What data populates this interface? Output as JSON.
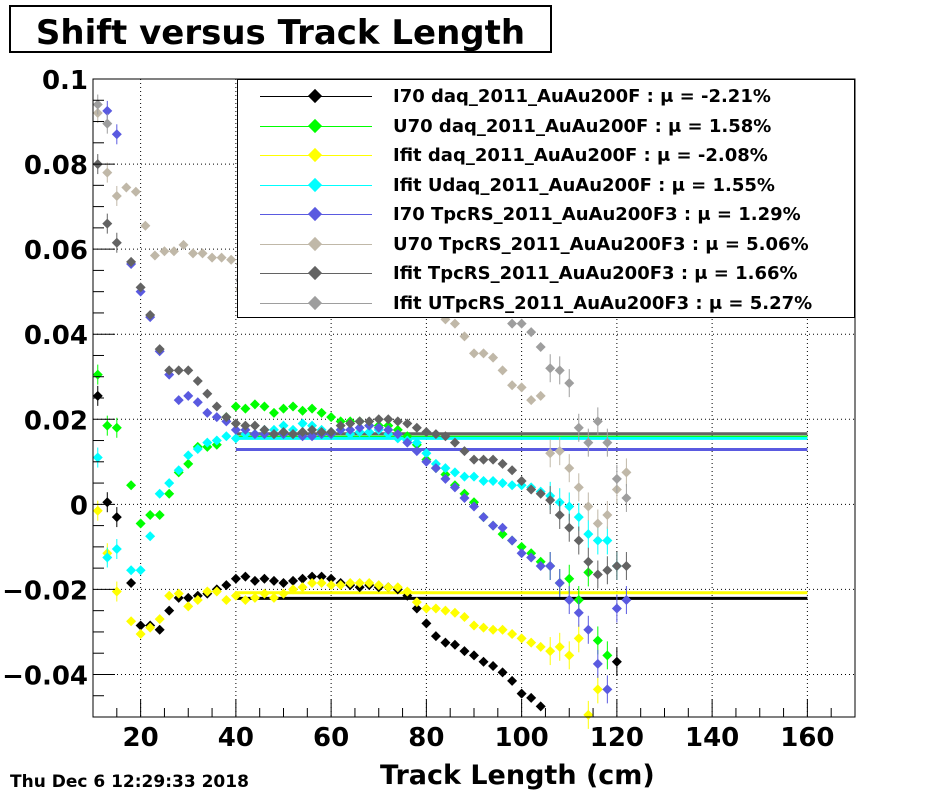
{
  "title": "Shift versus Track Length",
  "timestamp": "Thu Dec  6 12:29:33 2018",
  "chart_data": {
    "type": "scatter",
    "title": "Shift versus Track Length",
    "xlabel": "Track Length (cm)",
    "ylabel": "",
    "xlim": [
      10,
      170
    ],
    "ylim": [
      -0.05,
      0.1
    ],
    "x_ticks": [
      "20",
      "40",
      "60",
      "80",
      "100",
      "120",
      "140",
      "160"
    ],
    "y_ticks": [
      "0.1",
      "0.08",
      "0.06",
      "0.04",
      "0.02",
      "0",
      "−0.02",
      "−0.04"
    ],
    "grid": true,
    "legend_position": "top-right",
    "series": [
      {
        "name": "I70  daq_2011_AuAu200F : μ = -2.21%",
        "color": "#000000",
        "fit": -0.0221,
        "fit_range": [
          40,
          160
        ],
        "x": [
          11,
          13,
          15,
          18,
          20,
          22,
          24,
          26,
          28,
          30,
          32,
          34,
          36,
          38,
          40,
          42,
          44,
          46,
          48,
          50,
          52,
          54,
          56,
          58,
          60,
          62,
          64,
          66,
          68,
          70,
          72,
          74,
          76,
          78,
          80,
          82,
          84,
          86,
          88,
          90,
          92,
          94,
          96,
          98,
          100,
          102,
          104,
          120
        ],
        "y": [
          0.0255,
          0.0005,
          -0.003,
          -0.0185,
          -0.0285,
          -0.0285,
          -0.0295,
          -0.025,
          -0.022,
          -0.022,
          -0.0215,
          -0.021,
          -0.02,
          -0.019,
          -0.0175,
          -0.017,
          -0.018,
          -0.0175,
          -0.018,
          -0.0185,
          -0.018,
          -0.0175,
          -0.017,
          -0.017,
          -0.0175,
          -0.0185,
          -0.019,
          -0.0195,
          -0.019,
          -0.0195,
          -0.0195,
          -0.02,
          -0.0215,
          -0.0245,
          -0.028,
          -0.031,
          -0.0325,
          -0.033,
          -0.0345,
          -0.0355,
          -0.037,
          -0.038,
          -0.0395,
          -0.0415,
          -0.0445,
          -0.0455,
          -0.0475,
          -0.037
        ]
      },
      {
        "name": "U70  daq_2011_AuAu200F : μ =  1.58%",
        "color": "#00ff00",
        "fit": 0.0158,
        "fit_range": [
          40,
          160
        ],
        "x": [
          11,
          13,
          15,
          18,
          20,
          22,
          24,
          26,
          28,
          30,
          32,
          34,
          36,
          38,
          40,
          42,
          44,
          46,
          48,
          50,
          52,
          54,
          56,
          58,
          60,
          62,
          64,
          66,
          68,
          70,
          72,
          74,
          76,
          78,
          80,
          82,
          84,
          86,
          88,
          90,
          92,
          94,
          96,
          98,
          100,
          102,
          104,
          106,
          108,
          110,
          112,
          114,
          116,
          118
        ],
        "y": [
          0.0305,
          0.0185,
          0.018,
          0.0045,
          -0.0045,
          -0.0025,
          -0.0025,
          0.0025,
          0.0075,
          0.0095,
          0.0135,
          0.0135,
          0.014,
          0.0205,
          0.023,
          0.0225,
          0.0235,
          0.023,
          0.0215,
          0.0225,
          0.023,
          0.022,
          0.0225,
          0.0215,
          0.0205,
          0.0195,
          0.0195,
          0.0195,
          0.0185,
          0.0185,
          0.0185,
          0.0175,
          0.016,
          0.014,
          0.0105,
          0.0085,
          0.007,
          0.0045,
          0.0025,
          0.0005,
          -0.003,
          -0.005,
          -0.007,
          -0.0085,
          -0.01,
          -0.0115,
          -0.0135,
          -0.0145,
          -0.0185,
          -0.0175,
          -0.0225,
          -0.016,
          -0.032,
          -0.0355
        ]
      },
      {
        "name": "Ifit daq_2011_AuAu200F : μ = -2.08%",
        "color": "#ffff00",
        "fit": -0.0208,
        "fit_range": [
          40,
          160
        ],
        "x": [
          11,
          13,
          15,
          18,
          20,
          22,
          24,
          26,
          28,
          30,
          32,
          34,
          36,
          38,
          40,
          42,
          44,
          46,
          48,
          50,
          52,
          54,
          56,
          58,
          60,
          62,
          64,
          66,
          68,
          70,
          72,
          74,
          76,
          78,
          80,
          82,
          84,
          86,
          88,
          90,
          92,
          94,
          96,
          98,
          100,
          102,
          104,
          106,
          108,
          110,
          112,
          114,
          116
        ],
        "y": [
          -0.0015,
          -0.0115,
          -0.0205,
          -0.0275,
          -0.0305,
          -0.029,
          -0.027,
          -0.0215,
          -0.021,
          -0.024,
          -0.0225,
          -0.0205,
          -0.0205,
          -0.0225,
          -0.0215,
          -0.0225,
          -0.022,
          -0.021,
          -0.022,
          -0.021,
          -0.02,
          -0.0195,
          -0.0185,
          -0.0185,
          -0.019,
          -0.019,
          -0.0185,
          -0.0185,
          -0.0185,
          -0.019,
          -0.0195,
          -0.0195,
          -0.0205,
          -0.023,
          -0.0245,
          -0.0245,
          -0.025,
          -0.0255,
          -0.0265,
          -0.0285,
          -0.029,
          -0.0295,
          -0.0295,
          -0.0305,
          -0.0315,
          -0.0325,
          -0.0335,
          -0.0345,
          -0.0335,
          -0.0355,
          -0.0315,
          -0.0495,
          -0.0435
        ]
      },
      {
        "name": "Ifit Udaq_2011_AuAu200F : μ =  1.55%",
        "color": "#00ffff",
        "fit": 0.0155,
        "fit_range": [
          40,
          160
        ],
        "x": [
          11,
          13,
          15,
          18,
          20,
          22,
          24,
          26,
          28,
          30,
          32,
          34,
          36,
          38,
          40,
          42,
          44,
          46,
          48,
          50,
          52,
          54,
          56,
          58,
          60,
          62,
          64,
          66,
          68,
          70,
          72,
          74,
          76,
          78,
          80,
          82,
          84,
          86,
          88,
          90,
          92,
          94,
          96,
          98,
          100,
          102,
          104,
          106,
          108,
          110,
          112,
          114,
          116,
          118,
          120
        ],
        "y": [
          0.011,
          -0.0125,
          -0.0105,
          -0.0155,
          -0.0155,
          -0.0075,
          0.0025,
          0.005,
          0.008,
          0.0115,
          0.013,
          0.0145,
          0.015,
          0.016,
          0.0155,
          0.0165,
          0.0165,
          0.0175,
          0.0175,
          0.0185,
          0.0175,
          0.019,
          0.0185,
          0.0175,
          0.017,
          0.0175,
          0.0165,
          0.017,
          0.017,
          0.0175,
          0.0165,
          0.0155,
          0.015,
          0.0145,
          0.012,
          0.0095,
          0.0085,
          0.0075,
          0.0065,
          0.0065,
          0.0055,
          0.0055,
          0.005,
          0.0045,
          0.0045,
          0.004,
          0.003,
          0.002,
          0.0005,
          -0.0005,
          -0.003,
          -0.007,
          -0.0085,
          -0.0085,
          -0.0145
        ]
      },
      {
        "name": "I70  TpcRS_2011_AuAu200F3 : μ =  1.29%",
        "color": "#5a5ae0",
        "fit": 0.0129,
        "fit_range": [
          40,
          160
        ],
        "x": [
          13,
          15,
          18,
          20,
          22,
          24,
          26,
          28,
          30,
          32,
          34,
          36,
          38,
          40,
          42,
          44,
          46,
          48,
          50,
          52,
          54,
          56,
          58,
          60,
          62,
          64,
          66,
          68,
          70,
          72,
          74,
          76,
          78,
          80,
          82,
          84,
          86,
          88,
          90,
          92,
          94,
          96,
          98,
          100,
          102,
          104,
          106,
          108,
          110,
          112,
          114,
          116,
          118,
          120,
          122
        ],
        "y": [
          0.0925,
          0.087,
          0.0565,
          0.05,
          0.044,
          0.036,
          0.0305,
          0.0245,
          0.0255,
          0.024,
          0.0215,
          0.0205,
          0.0195,
          0.0175,
          0.0175,
          0.0165,
          0.0165,
          0.0165,
          0.0165,
          0.0165,
          0.016,
          0.016,
          0.0165,
          0.0165,
          0.0175,
          0.0175,
          0.018,
          0.0185,
          0.018,
          0.0175,
          0.0165,
          0.0145,
          0.0125,
          0.01,
          0.0085,
          0.006,
          0.004,
          0.0015,
          -0.0005,
          -0.003,
          -0.005,
          -0.0055,
          -0.0085,
          -0.0115,
          -0.0125,
          -0.0145,
          -0.0145,
          -0.0185,
          -0.0225,
          -0.0255,
          -0.0295,
          -0.0375,
          -0.0435,
          -0.0245,
          -0.0225
        ]
      },
      {
        "name": "U70  TpcRS_2011_AuAu200F3 : μ =  5.06%",
        "color": "#c0b8a8",
        "fit": 0.0506,
        "fit_range": [
          40,
          160
        ],
        "x": [
          11,
          13,
          15,
          17,
          19,
          21,
          23,
          25,
          27,
          29,
          31,
          33,
          35,
          37,
          39,
          41,
          43,
          45,
          47,
          49,
          84,
          86,
          88,
          90,
          92,
          94,
          96,
          98,
          100,
          102,
          104,
          106,
          108,
          110,
          112,
          114,
          116,
          118,
          120,
          122
        ],
        "y": [
          0.092,
          0.078,
          0.0725,
          0.0745,
          0.0735,
          0.0655,
          0.0585,
          0.0595,
          0.0595,
          0.061,
          0.059,
          0.059,
          0.058,
          0.058,
          0.0575,
          0.0565,
          0.0575,
          0.057,
          0.0565,
          0.057,
          0.0435,
          0.0425,
          0.0395,
          0.0355,
          0.0355,
          0.0345,
          0.0315,
          0.028,
          0.0275,
          0.0245,
          0.0255,
          0.012,
          0.0125,
          0.0085,
          0.004,
          -0.0005,
          -0.0045,
          -0.0025,
          0.0035,
          0.0075
        ]
      },
      {
        "name": "Ifit TpcRS_2011_AuAu200F3 : μ =  1.66%",
        "color": "#636363",
        "fit": 0.0166,
        "fit_range": [
          40,
          160
        ],
        "x": [
          11,
          13,
          15,
          18,
          20,
          22,
          24,
          26,
          28,
          30,
          32,
          34,
          36,
          38,
          40,
          42,
          44,
          46,
          48,
          50,
          52,
          54,
          56,
          58,
          60,
          62,
          64,
          66,
          68,
          70,
          72,
          74,
          76,
          78,
          80,
          82,
          84,
          86,
          88,
          90,
          92,
          94,
          96,
          98,
          100,
          102,
          104,
          106,
          108,
          110,
          112,
          114,
          116,
          118,
          120,
          122
        ],
        "y": [
          0.08,
          0.066,
          0.0615,
          0.057,
          0.051,
          0.0445,
          0.0365,
          0.0315,
          0.0315,
          0.0315,
          0.029,
          0.026,
          0.023,
          0.0205,
          0.019,
          0.0185,
          0.0185,
          0.0175,
          0.0165,
          0.017,
          0.0165,
          0.017,
          0.0175,
          0.017,
          0.017,
          0.0185,
          0.019,
          0.0195,
          0.0195,
          0.02,
          0.02,
          0.0195,
          0.019,
          0.018,
          0.017,
          0.0165,
          0.016,
          0.0145,
          0.0125,
          0.0105,
          0.0105,
          0.0105,
          0.0095,
          0.008,
          0.0055,
          0.0035,
          0.0025,
          0.001,
          -0.0025,
          -0.0055,
          -0.0085,
          -0.0135,
          -0.0165,
          -0.0155,
          -0.0145,
          -0.0145
        ]
      },
      {
        "name": "Ifit UTpcRS_2011_AuAu200F3 : μ =  5.27%",
        "color": "#9e9e9e",
        "fit": 0.0527,
        "fit_range": [
          40,
          160
        ],
        "x": [
          11,
          13,
          96,
          98,
          100,
          102,
          104,
          106,
          108,
          110,
          112,
          114,
          116,
          118,
          120,
          122
        ],
        "y": [
          0.094,
          0.0895,
          0.0455,
          0.0425,
          0.0425,
          0.0405,
          0.037,
          0.032,
          0.0315,
          0.0285,
          0.018,
          0.0145,
          0.0195,
          0.0145,
          0.006,
          0.0015
        ]
      }
    ]
  },
  "colors": {
    "frame": "#000000",
    "grid": "#000000",
    "background": "#ffffff"
  }
}
